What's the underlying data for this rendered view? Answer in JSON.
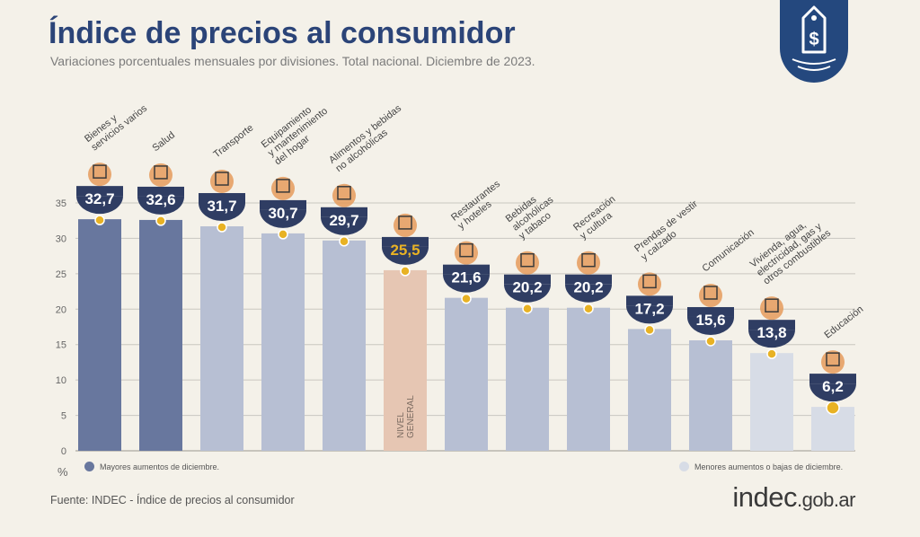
{
  "header": {
    "title": "Índice de precios al consumidor",
    "subtitle": "Variaciones porcentuales mensuales por divisiones. Total nacional. Diciembre de 2023."
  },
  "legend": {
    "high_label": "Mayores aumentos de diciembre.",
    "low_label": "Menores aumentos o bajas de diciembre."
  },
  "footer": {
    "source": "Fuente: INDEC - Índice de precios al consumidor",
    "brand_main": "indec",
    "brand_suffix": ".gob.ar"
  },
  "badge_icon": "price-tag-dollar-icon",
  "colors": {
    "high": "#68779e",
    "mid": "#b7bfd3",
    "low": "#d7dce6",
    "general": "#e6c6b3",
    "bubble": "#2f3d63",
    "dot": "#e8b224",
    "title": "#2b4478",
    "grid": "#c9c7c0"
  },
  "chart_data": {
    "type": "bar",
    "title": "Índice de precios al consumidor",
    "ylabel": "%",
    "ylim": [
      0,
      35
    ],
    "yticks": [
      0,
      5,
      10,
      15,
      20,
      25,
      30,
      35
    ],
    "grid": true,
    "categories": [
      "Bienes y servicios varios",
      "Salud",
      "Transporte",
      "Equipamiento y mantenimiento del hogar",
      "Alimentos y bebidas no alcohólicas",
      "Nivel general",
      "Restaurantes y hoteles",
      "Bebidas alcohólicas y tabaco",
      "Recreación y cultura",
      "Prendas de vestir y calzado",
      "Comunicación",
      "Vivienda, agua, electricidad, gas y otros combustibles",
      "Educación"
    ],
    "values": [
      32.7,
      32.6,
      31.7,
      30.7,
      29.7,
      25.5,
      21.6,
      20.2,
      20.2,
      17.2,
      15.6,
      13.8,
      6.2
    ],
    "value_labels": [
      "32,7",
      "32,6",
      "31,7",
      "30,7",
      "29,7",
      "25,5",
      "21,6",
      "20,2",
      "20,2",
      "17,2",
      "15,6",
      "13,8",
      "6,2"
    ],
    "category_labels": [
      [
        "Bienes y",
        "servicios varios"
      ],
      [
        "Salud"
      ],
      [
        "Transporte"
      ],
      [
        "Equipamiento",
        "y mantenimiento",
        "del hogar"
      ],
      [
        "Alimentos y bebidas",
        "no alcohólicas"
      ],
      [
        "NIVEL",
        "GENERAL"
      ],
      [
        "Restaurantes",
        "y hoteles"
      ],
      [
        "Bebidas",
        "alcohólicas",
        "y tabaco"
      ],
      [
        "Recreación",
        "y cultura"
      ],
      [
        "Prendas de vestir",
        "y calzado"
      ],
      [
        "Comunicación"
      ],
      [
        "Vivienda, agua,",
        "electricidad, gas y",
        "otros combustibles"
      ],
      [
        "Educación"
      ]
    ],
    "groups": [
      "high",
      "high",
      "mid",
      "mid",
      "mid",
      "general",
      "mid",
      "mid",
      "mid",
      "mid",
      "mid",
      "low",
      "low"
    ],
    "icons": [
      "scissors-comb-icon",
      "medical-cross-icon",
      "bus-car-icon",
      "washing-machine-icon",
      "food-bowl-icon",
      "basket-icon",
      "plate-cutlery-icon",
      "drinks-icon",
      "beach-umbrella-icon",
      "tshirt-icon",
      "smartphone-icon",
      "lightbulb-icon",
      "notebook-icon"
    ]
  }
}
